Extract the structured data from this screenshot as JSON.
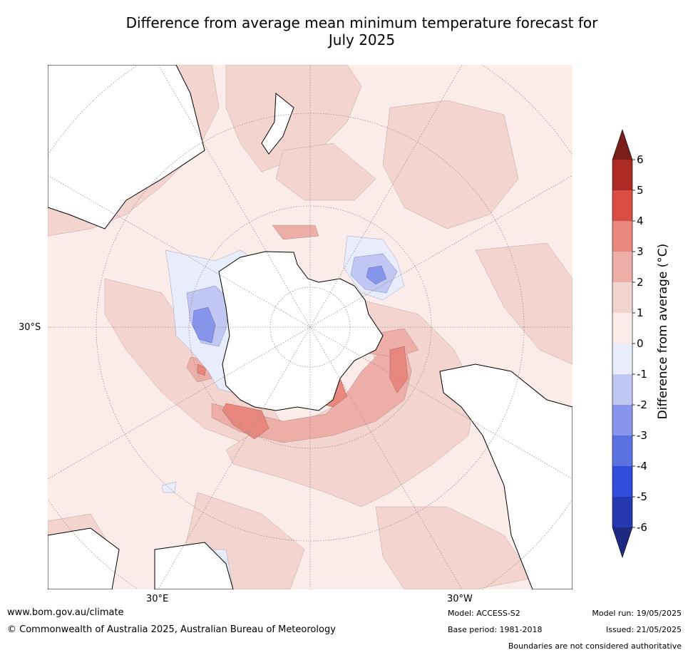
{
  "title": {
    "line1": "Difference from average mean minimum temperature forecast for",
    "line2": "July 2025"
  },
  "map": {
    "projection": "south-polar-stereographic",
    "axis_labels": {
      "left": "30°S",
      "bottom_left": "30°E",
      "bottom_right": "30°W"
    },
    "land_colour": "#ffffff",
    "coastline_colour": "#000000",
    "graticule_colour": "#9a8f90"
  },
  "colorbar": {
    "label": "Difference from average ($^\\circ$C)",
    "label_display": "Difference from average (°C)",
    "ticks": [
      "6",
      "5",
      "4",
      "3",
      "2",
      "1",
      "0",
      "-1",
      "-2",
      "-3",
      "-4",
      "-5",
      "-6"
    ],
    "extend": "both",
    "bins": [
      {
        "range": [
          5,
          6
        ],
        "color": "#ab2a24"
      },
      {
        "range": [
          4,
          5
        ],
        "color": "#d94d43"
      },
      {
        "range": [
          3,
          4
        ],
        "color": "#e8877e"
      },
      {
        "range": [
          2,
          3
        ],
        "color": "#edaea8"
      },
      {
        "range": [
          1,
          2
        ],
        "color": "#f4d4cf"
      },
      {
        "range": [
          0,
          1
        ],
        "color": "#fbece9"
      },
      {
        "range": [
          -1,
          0
        ],
        "color": "#e9ecfa"
      },
      {
        "range": [
          -2,
          -1
        ],
        "color": "#c0c7f2"
      },
      {
        "range": [
          -3,
          -2
        ],
        "color": "#8796ea"
      },
      {
        "range": [
          -4,
          -3
        ],
        "color": "#5b71e0"
      },
      {
        "range": [
          -5,
          -4
        ],
        "color": "#2f4edc"
      },
      {
        "range": [
          -6,
          -5
        ],
        "color": "#2638b0"
      }
    ],
    "over_color": "#7a1e1a",
    "under_color": "#1e2a80"
  },
  "footer": {
    "website": "www.bom.gov.au/climate",
    "copyright": "© Commonwealth of Australia 2025, Australian Bureau of Meteorology",
    "model": "Model: ACCESS-S2",
    "base_period": "Base period: 1981-2018",
    "model_run": "Model run: 19/05/2025",
    "issued": "Issued: 21/05/2025",
    "disclaimer": "Boundaries are not considered authoritative"
  }
}
